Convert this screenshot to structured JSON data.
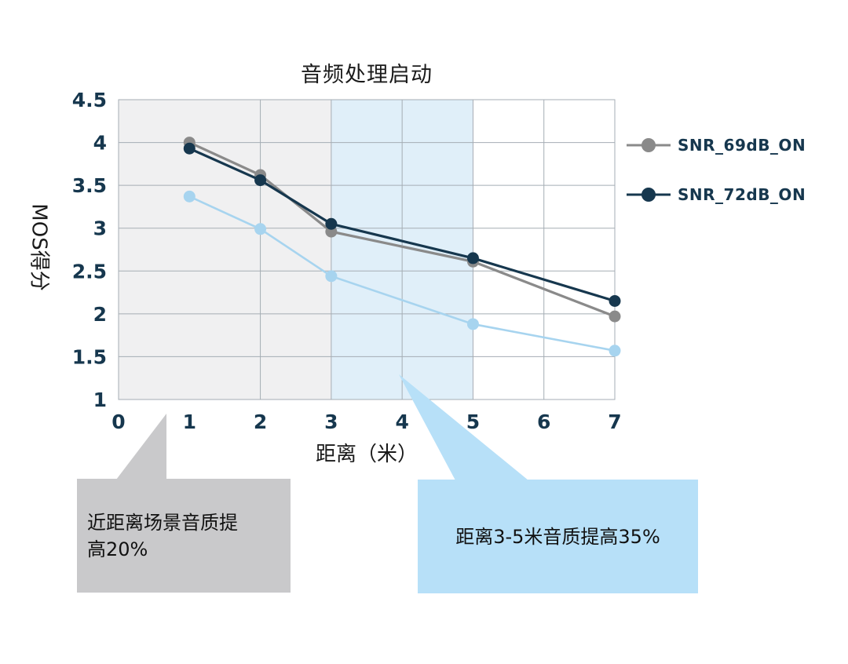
{
  "chart_data": {
    "type": "line",
    "title": "音频处理启动",
    "xlabel": "距离（米）",
    "ylabel": "MOS得分",
    "xlim": [
      0,
      7
    ],
    "ylim": [
      1,
      4.5
    ],
    "x_ticks": [
      "0",
      "1",
      "2",
      "3",
      "4",
      "5",
      "6",
      "7"
    ],
    "y_ticks": [
      "1",
      "1.5",
      "2",
      "2.5",
      "3",
      "3.5",
      "4",
      "4.5"
    ],
    "v_gridlines": [
      2,
      3,
      4,
      5,
      6
    ],
    "grid": true,
    "legend_position": "right-of-plot",
    "x": [
      1,
      2,
      3,
      5,
      7
    ],
    "series": [
      {
        "name": "",
        "color": "#a7d4ef",
        "in_legend": false,
        "values": [
          3.37,
          2.99,
          2.44,
          1.88,
          1.57
        ]
      },
      {
        "name": "SNR_69dB_ON",
        "color": "#8a8a8a",
        "in_legend": true,
        "values": [
          4.0,
          3.62,
          2.96,
          2.61,
          1.97
        ]
      },
      {
        "name": "SNR_72dB_ON",
        "color": "#16374e",
        "in_legend": true,
        "values": [
          3.93,
          3.56,
          3.05,
          2.65,
          2.15
        ]
      }
    ],
    "shaded_regions": [
      {
        "x_from": 0,
        "x_to": 3,
        "color": "#f0f0f1"
      },
      {
        "x_from": 3,
        "x_to": 5,
        "color": "#e0eff9"
      }
    ]
  },
  "legend": {
    "items": [
      {
        "label": "SNR_69dB_ON",
        "color": "#8a8a8a"
      },
      {
        "label": "SNR_72dB_ON",
        "color": "#16374e"
      }
    ]
  },
  "annotations": [
    {
      "text": "近距离场景音质提高20%",
      "fill": "#c9c9cb"
    },
    {
      "text": "距离3-5米音质提高35%",
      "fill": "#b7e0f8"
    }
  ],
  "colors": {
    "axis_text": "#16374e",
    "grid": "#a5adb4",
    "title_text": "#1a1a1a"
  }
}
